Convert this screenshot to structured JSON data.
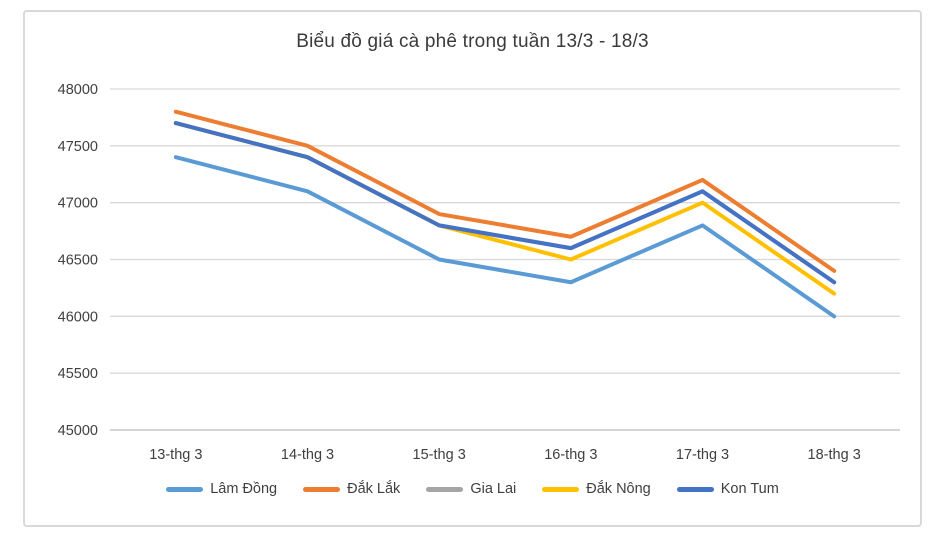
{
  "chart_data": {
    "type": "line",
    "title": "Biểu đồ giá cà phê trong tuần 13/3 - 18/3",
    "categories": [
      "13-thg 3",
      "14-thg 3",
      "15-thg 3",
      "16-thg 3",
      "17-thg 3",
      "18-thg 3"
    ],
    "series": [
      {
        "name": "Lâm Đồng",
        "color": "#5B9BD5",
        "values": [
          47400,
          47100,
          46500,
          46300,
          46800,
          46000
        ]
      },
      {
        "name": "Đắk Lắk",
        "color": "#ED7D31",
        "values": [
          47800,
          47500,
          46900,
          46700,
          47200,
          46400
        ]
      },
      {
        "name": "Gia Lai",
        "color": "#A5A5A5",
        "values": [
          47700,
          47400,
          46800,
          46600,
          47100,
          46300
        ]
      },
      {
        "name": "Đắk Nông",
        "color": "#FFC000",
        "values": [
          47700,
          47400,
          46800,
          46500,
          47000,
          46200
        ]
      },
      {
        "name": "Kon Tum",
        "color": "#4472C4",
        "values": [
          47700,
          47400,
          46800,
          46600,
          47100,
          46300
        ]
      }
    ],
    "y_ticks": [
      45000,
      45500,
      46000,
      46500,
      47000,
      47500,
      48000
    ],
    "ylim": [
      45000,
      48000
    ],
    "xlabel": "",
    "ylabel": "",
    "grid": true,
    "legend_position": "bottom",
    "gridline_color": "#d9d9d9",
    "axis_line_color": "#c6c6c6",
    "text_color": "#404040"
  }
}
